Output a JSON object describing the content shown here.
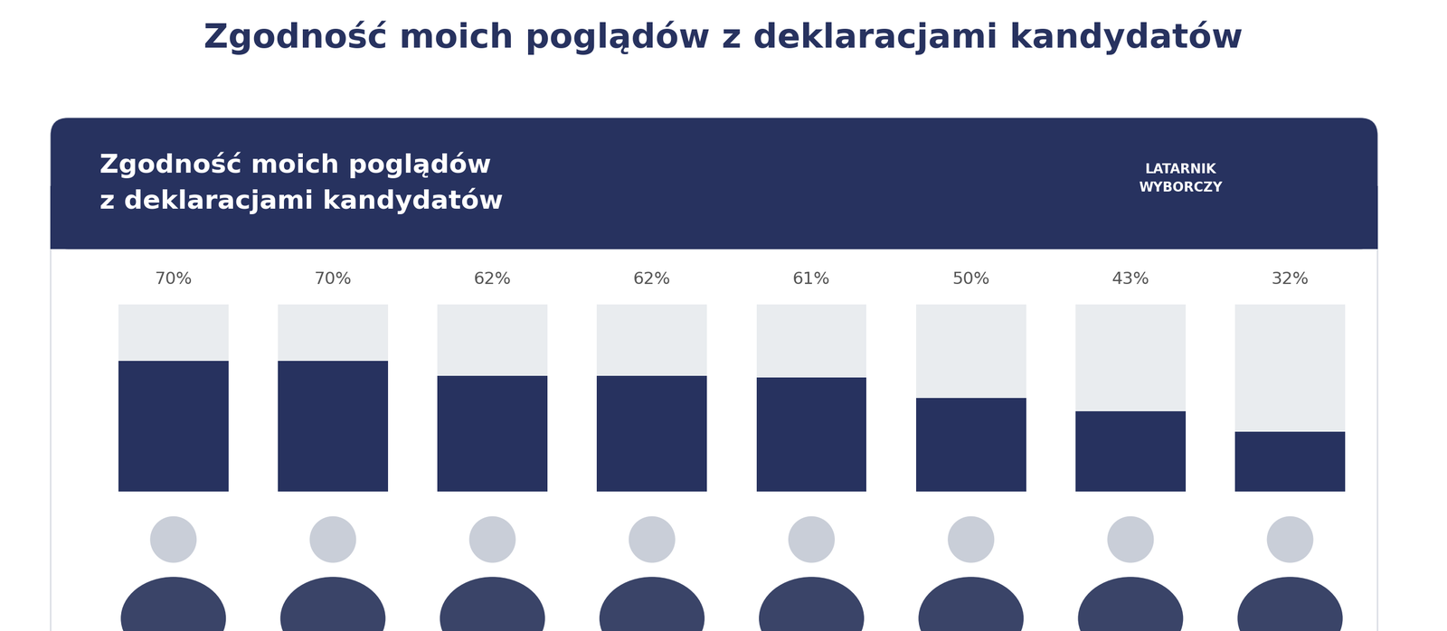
{
  "chart_data": {
    "type": "bar",
    "title": "Zgodność moich poglądów z deklaracjami kandydatów",
    "panel_title": "Zgodność moich poglądów\nz deklaracjami kandydatów",
    "logo": "LATARNIK\nWYBORCZY",
    "categories": [
      null,
      null,
      null,
      null,
      null,
      null,
      null,
      null
    ],
    "values": [
      70,
      70,
      62,
      62,
      61,
      50,
      43,
      32
    ],
    "value_labels": [
      "70%",
      "70%",
      "62%",
      "62%",
      "61%",
      "50%",
      "43%",
      "32%"
    ],
    "color": "#27325f",
    "ylim": [
      0,
      100
    ],
    "yticks": [],
    "grid": false,
    "data_labels": true,
    "tick_labels": false
  }
}
